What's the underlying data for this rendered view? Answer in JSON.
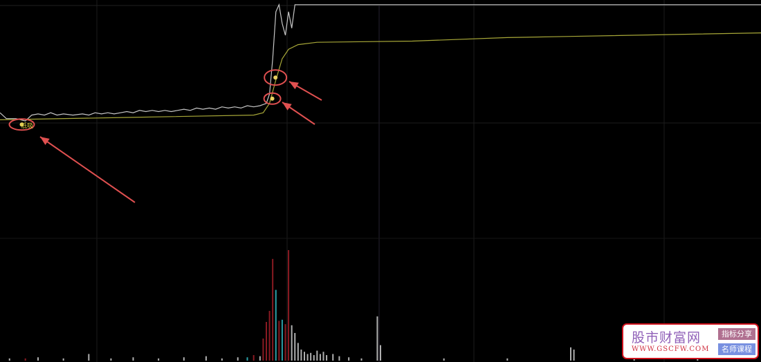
{
  "chart_data": {
    "type": "line",
    "title": "",
    "xlabel": "",
    "ylabel": "",
    "xlim": [
      0,
      240
    ],
    "ylim": [
      0,
      100
    ],
    "grid": true,
    "colors": {
      "background": "#000000",
      "price": "#c8c8c8",
      "average": "#a8a838",
      "grid": "#1c1c1c",
      "marker_circle": "#e05050",
      "arrow": "#e05050",
      "vol_up": "#8a1a22",
      "vol_down": "#2aa0a8",
      "vol_neutral": "#b0b0b0"
    },
    "series": [
      {
        "key": "price",
        "points": [
          [
            0,
            52
          ],
          [
            2,
            49.5
          ],
          [
            5,
            49.5
          ],
          [
            8,
            48.5
          ],
          [
            10,
            51
          ],
          [
            12,
            51.5
          ],
          [
            14,
            51
          ],
          [
            16,
            52
          ],
          [
            18,
            51
          ],
          [
            20,
            51.5
          ],
          [
            23,
            51
          ],
          [
            26,
            51.5
          ],
          [
            28,
            51
          ],
          [
            30,
            52
          ],
          [
            32,
            51.5
          ],
          [
            34,
            52
          ],
          [
            36,
            51.5
          ],
          [
            38,
            52
          ],
          [
            40,
            52.5
          ],
          [
            42,
            52
          ],
          [
            44,
            53
          ],
          [
            46,
            52.5
          ],
          [
            48,
            53
          ],
          [
            50,
            52.5
          ],
          [
            52,
            53
          ],
          [
            54,
            52.5
          ],
          [
            56,
            53
          ],
          [
            58,
            53.5
          ],
          [
            60,
            53
          ],
          [
            62,
            54
          ],
          [
            64,
            53.5
          ],
          [
            66,
            54
          ],
          [
            68,
            53.5
          ],
          [
            70,
            54.5
          ],
          [
            72,
            54
          ],
          [
            74,
            54.5
          ],
          [
            76,
            54
          ],
          [
            78,
            55
          ],
          [
            80,
            54.5
          ],
          [
            82,
            55
          ],
          [
            84,
            56
          ],
          [
            85,
            60
          ],
          [
            86,
            75
          ],
          [
            87,
            95
          ],
          [
            88,
            98
          ],
          [
            89,
            90
          ],
          [
            90,
            85
          ],
          [
            91,
            95
          ],
          [
            92,
            88
          ],
          [
            93,
            98
          ],
          [
            240,
            98
          ]
        ]
      },
      {
        "key": "average",
        "points": [
          [
            0,
            49
          ],
          [
            40,
            50
          ],
          [
            80,
            51
          ],
          [
            83,
            52
          ],
          [
            85,
            56
          ],
          [
            87,
            66
          ],
          [
            89,
            75
          ],
          [
            91,
            79
          ],
          [
            94,
            81
          ],
          [
            100,
            82
          ],
          [
            130,
            82.5
          ],
          [
            160,
            84
          ],
          [
            180,
            84.5
          ],
          [
            240,
            86
          ]
        ]
      }
    ],
    "volume": {
      "ylim": [
        0,
        100
      ],
      "bars": [
        [
          3,
          2,
          "n"
        ],
        [
          8,
          2,
          "u"
        ],
        [
          12,
          3,
          "n"
        ],
        [
          20,
          2,
          "n"
        ],
        [
          28,
          6,
          "n"
        ],
        [
          35,
          2,
          "n"
        ],
        [
          42,
          3,
          "n"
        ],
        [
          50,
          2,
          "n"
        ],
        [
          58,
          3,
          "n"
        ],
        [
          65,
          4,
          "n"
        ],
        [
          70,
          2,
          "n"
        ],
        [
          75,
          3,
          "n"
        ],
        [
          78,
          3,
          "d"
        ],
        [
          80,
          5,
          "u"
        ],
        [
          82,
          4,
          "n"
        ],
        [
          83,
          20,
          "u"
        ],
        [
          84,
          35,
          "u"
        ],
        [
          85,
          45,
          "u"
        ],
        [
          86,
          92,
          "u"
        ],
        [
          87,
          64,
          "d"
        ],
        [
          88,
          36,
          "u"
        ],
        [
          89,
          37,
          "d"
        ],
        [
          90,
          33,
          "u"
        ],
        [
          91,
          100,
          "u"
        ],
        [
          92,
          32,
          "n"
        ],
        [
          93,
          25,
          "n"
        ],
        [
          94,
          16,
          "n"
        ],
        [
          95,
          10,
          "n"
        ],
        [
          96,
          8,
          "n"
        ],
        [
          97,
          6,
          "n"
        ],
        [
          98,
          7,
          "n"
        ],
        [
          99,
          5,
          "n"
        ],
        [
          100,
          9,
          "n"
        ],
        [
          101,
          6,
          "n"
        ],
        [
          102,
          8,
          "n"
        ],
        [
          103,
          5,
          "n"
        ],
        [
          105,
          6,
          "n"
        ],
        [
          107,
          4,
          "n"
        ],
        [
          110,
          3,
          "n"
        ],
        [
          114,
          2,
          "n"
        ],
        [
          119,
          40,
          "n"
        ],
        [
          120,
          14,
          "n"
        ],
        [
          140,
          2,
          "n"
        ],
        [
          160,
          2,
          "n"
        ],
        [
          180,
          12,
          "n"
        ],
        [
          181,
          10,
          "n"
        ],
        [
          200,
          2,
          "n"
        ],
        [
          220,
          3,
          "n"
        ]
      ]
    },
    "annotations": {
      "signal_label": "低吸",
      "signals": [
        [
          6,
          47
        ],
        [
          85,
          58
        ],
        [
          86,
          67
        ]
      ]
    },
    "watermark": {
      "name": "股市财富网",
      "url": "WWW.GSCFW.COM",
      "tag1": "指标分享",
      "tag2": "名师课程"
    }
  }
}
